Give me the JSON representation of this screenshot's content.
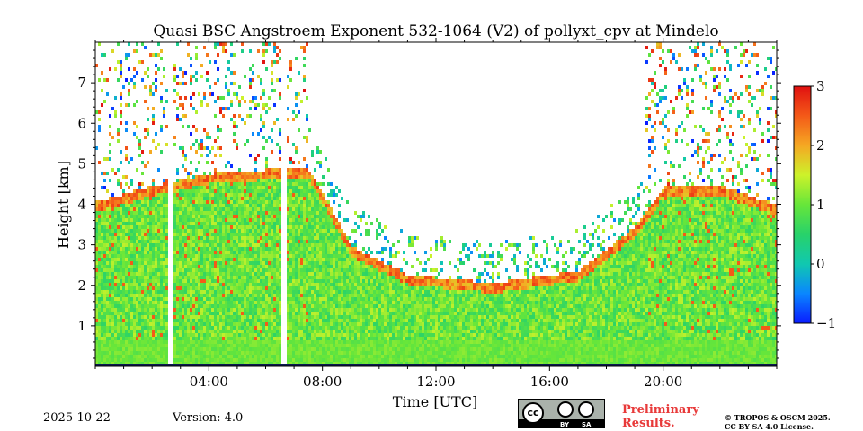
{
  "chart_data": {
    "type": "heatmap",
    "title": "Quasi BSC Angstroem Exponent 532-1064 (V2) of pollyxt_cpv at Mindelo",
    "xlabel": "Time [UTC]",
    "ylabel": "Height [km]",
    "x_ticks": [
      "04:00",
      "08:00",
      "12:00",
      "16:00",
      "20:00"
    ],
    "x_tick_values": [
      4,
      8,
      12,
      16,
      20
    ],
    "y_ticks": [
      "1",
      "2",
      "3",
      "4",
      "5",
      "6",
      "7"
    ],
    "y_tick_values": [
      1,
      2,
      3,
      4,
      5,
      6,
      7
    ],
    "xlim": [
      0,
      24
    ],
    "ylim": [
      0,
      8
    ],
    "colorbar": {
      "range": [
        -1,
        3
      ],
      "ticks": [
        "−1",
        "0",
        "1",
        "2",
        "3"
      ],
      "tick_values": [
        -1,
        0,
        1,
        2,
        3
      ],
      "colormap": "jet"
    },
    "layers": {
      "near_surface_layer_top_km": 0.7,
      "gap_columns_utc": [
        2.6,
        6.6
      ],
      "dense_layer_top_km": [
        [
          0,
          4.1
        ],
        [
          2,
          4.5
        ],
        [
          4,
          4.8
        ],
        [
          6,
          4.9
        ],
        [
          7.5,
          4.9
        ],
        [
          9,
          3.0
        ],
        [
          11,
          2.3
        ],
        [
          14,
          2.1
        ],
        [
          17,
          2.4
        ],
        [
          19,
          3.5
        ],
        [
          20,
          4.5
        ],
        [
          22,
          4.5
        ],
        [
          24,
          4.0
        ]
      ]
    }
  },
  "footer": {
    "date": "2025-10-22",
    "version": "Version: 4.0",
    "license_badge": {
      "cc": "cc",
      "by": "BY",
      "sa": "SA"
    },
    "preliminary": "Preliminary Results.",
    "copyright_line1": "© TROPOS & OSCM 2025.",
    "copyright_line2": "CC BY SA 4.0 License."
  }
}
